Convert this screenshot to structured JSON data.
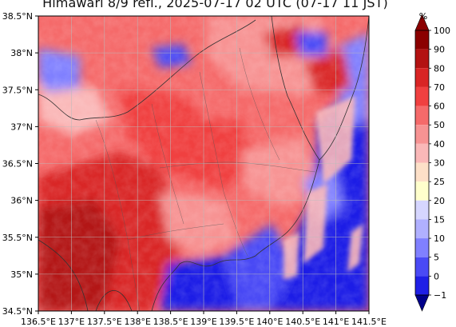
{
  "title": "Himawari 8/9 refl., 2025-07-17 02 UTC (07-17 11 JST)",
  "map": {
    "lat_range": [
      34.5,
      38.5
    ],
    "lon_range": [
      136.5,
      141.5
    ],
    "lat_ticks": [
      "38.5°N",
      "38°N",
      "37.5°N",
      "37°N",
      "36.5°N",
      "36°N",
      "35.5°N",
      "35°N",
      "34.5°N"
    ],
    "lon_ticks": [
      "136.5°E",
      "137°E",
      "137.5°E",
      "138°E",
      "138.5°E",
      "139°E",
      "139.5°E",
      "140°E",
      "140.5°E",
      "141°E",
      "141.5°E"
    ],
    "gridlines": true
  },
  "colorbar": {
    "unit": "%",
    "levels": [
      "100",
      "90",
      "80",
      "70",
      "60",
      "50",
      "40",
      "30",
      "25",
      "20",
      "15",
      "10",
      "5",
      "0",
      "−1"
    ],
    "colors": [
      "#8b0000",
      "#b31212",
      "#d92525",
      "#f04040",
      "#f56a6a",
      "#f79393",
      "#fab8b8",
      "#fde0c8",
      "#ffffcc",
      "#d6d6ff",
      "#b0b0ff",
      "#8080ff",
      "#4a4af5",
      "#1f1fe6",
      "#00008b"
    ]
  }
}
